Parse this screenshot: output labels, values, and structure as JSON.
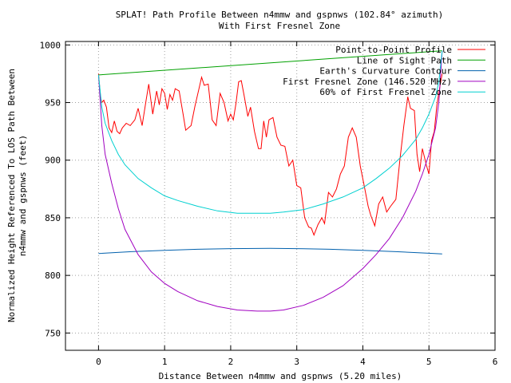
{
  "chart_data": {
    "type": "line",
    "title": "SPLAT! Path Profile Between n4mmw and gspnws (102.84° azimuth)",
    "subtitle": "With First Fresnel Zone",
    "xlabel": "Distance Between n4mmw and gspnws (5.20 miles)",
    "ylabel_line1": "Normalized Height Referenced To LOS Path Between",
    "ylabel_line2": "n4mmw and gspnws (feet)",
    "xlim": [
      -0.5,
      6
    ],
    "ylim": [
      735,
      1003
    ],
    "xticks": [
      0,
      1,
      2,
      3,
      4,
      5,
      6
    ],
    "yticks": [
      750,
      800,
      850,
      900,
      950,
      1000
    ],
    "grid": true,
    "legend_position": "top-right",
    "series": [
      {
        "name": "Point-to-Point Profile",
        "color": "#ff0000",
        "x": [
          0,
          0.03,
          0.05,
          0.08,
          0.12,
          0.16,
          0.2,
          0.24,
          0.28,
          0.32,
          0.36,
          0.42,
          0.48,
          0.55,
          0.6,
          0.66,
          0.72,
          0.76,
          0.82,
          0.88,
          0.92,
          0.96,
          1.0,
          1.04,
          1.08,
          1.12,
          1.16,
          1.22,
          1.28,
          1.32,
          1.36,
          1.4,
          1.46,
          1.52,
          1.56,
          1.6,
          1.66,
          1.72,
          1.78,
          1.84,
          1.9,
          1.96,
          2.0,
          2.04,
          2.08,
          2.12,
          2.16,
          2.2,
          2.26,
          2.3,
          2.36,
          2.42,
          2.46,
          2.5,
          2.54,
          2.58,
          2.64,
          2.7,
          2.76,
          2.82,
          2.88,
          2.94,
          3.0,
          3.06,
          3.12,
          3.18,
          3.22,
          3.26,
          3.32,
          3.38,
          3.42,
          3.48,
          3.54,
          3.6,
          3.66,
          3.72,
          3.78,
          3.84,
          3.9,
          3.96,
          4.02,
          4.08,
          4.12,
          4.18,
          4.24,
          4.3,
          4.36,
          4.42,
          4.5,
          4.56,
          4.62,
          4.68,
          4.72,
          4.78,
          4.82,
          4.86,
          4.9,
          4.96,
          5.0,
          5.04,
          5.08,
          5.12,
          5.16,
          5.2
        ],
        "y": [
          975,
          955,
          950,
          952,
          946,
          928,
          924,
          934,
          925,
          923,
          928,
          932,
          930,
          935,
          945,
          930,
          952,
          966,
          940,
          960,
          948,
          962,
          958,
          944,
          957,
          952,
          962,
          960,
          940,
          926,
          928,
          930,
          947,
          962,
          972,
          965,
          966,
          935,
          930,
          958,
          950,
          934,
          940,
          935,
          949,
          968,
          969,
          957,
          938,
          946,
          925,
          910,
          910,
          934,
          920,
          935,
          937,
          920,
          913,
          912,
          895,
          900,
          878,
          876,
          850,
          842,
          841,
          835,
          844,
          850,
          845,
          872,
          868,
          875,
          888,
          895,
          920,
          928,
          920,
          895,
          878,
          860,
          852,
          843,
          862,
          868,
          855,
          860,
          866,
          900,
          930,
          955,
          945,
          943,
          905,
          890,
          910,
          896,
          888,
          917,
          925,
          948,
          962,
          975
        ]
      },
      {
        "name": "Line of Sight Path",
        "color": "#00a000",
        "x": [
          0,
          5.2
        ],
        "y": [
          974,
          995
        ]
      },
      {
        "name": "Earth's Curvature Contour",
        "color": "#0060ad",
        "x": [
          0,
          0.5,
          1.0,
          1.5,
          2.0,
          2.6,
          3.0,
          3.5,
          4.0,
          4.5,
          5.0,
          5.2
        ],
        "y": [
          819,
          820.6,
          821.8,
          822.7,
          823.2,
          823.4,
          823.2,
          822.7,
          821.8,
          820.6,
          819.2,
          818.6
        ]
      },
      {
        "name": "First Fresnel Zone (146.520 MHz)",
        "color": "#a000c0",
        "x": [
          0,
          0.05,
          0.1,
          0.2,
          0.3,
          0.4,
          0.6,
          0.8,
          1.0,
          1.2,
          1.5,
          1.8,
          2.1,
          2.4,
          2.6,
          2.8,
          3.1,
          3.4,
          3.7,
          4.0,
          4.2,
          4.4,
          4.6,
          4.8,
          4.9,
          5.0,
          5.1,
          5.15,
          5.2
        ],
        "y": [
          974,
          930,
          905,
          880,
          858,
          840,
          818,
          803,
          793,
          786,
          778,
          773,
          770,
          769,
          769,
          770,
          774,
          781,
          791,
          806,
          818,
          832,
          850,
          873,
          888,
          905,
          928,
          950,
          995
        ]
      },
      {
        "name": "60% of First Fresnel Zone",
        "color": "#00d0d0",
        "x": [
          0,
          0.05,
          0.1,
          0.2,
          0.3,
          0.4,
          0.6,
          0.8,
          1.0,
          1.2,
          1.5,
          1.8,
          2.1,
          2.4,
          2.6,
          2.8,
          3.1,
          3.4,
          3.7,
          4.0,
          4.2,
          4.4,
          4.6,
          4.8,
          4.9,
          5.0,
          5.1,
          5.15,
          5.2
        ],
        "y": [
          974,
          946,
          932,
          917,
          905,
          896,
          884,
          876,
          869,
          865,
          860,
          856,
          854,
          854,
          854,
          855,
          857,
          862,
          868,
          876,
          884,
          893,
          904,
          918,
          928,
          940,
          955,
          968,
          995
        ]
      }
    ]
  }
}
